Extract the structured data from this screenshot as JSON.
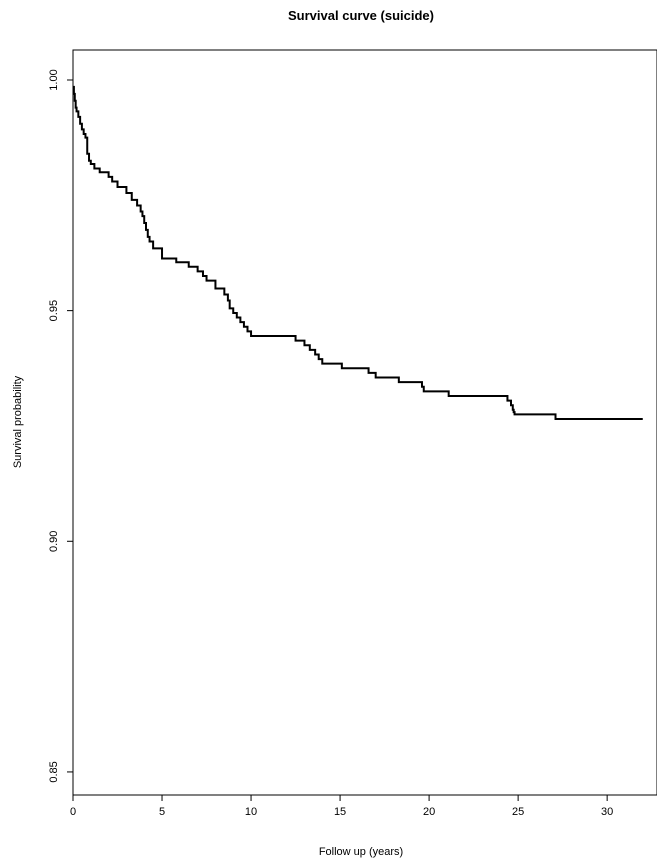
{
  "chart_data": {
    "type": "line",
    "title": "Survival curve (suicide)",
    "xlabel": "Follow up (years)",
    "ylabel": "Survival probability",
    "xlim": [
      0,
      32
    ],
    "ylim": [
      0.845,
      1.0065
    ],
    "x_ticks": [
      "0",
      "5",
      "10",
      "15",
      "20",
      "25",
      "30"
    ],
    "y_ticks": [
      "0.85",
      "0.90",
      "0.95",
      "1.00"
    ],
    "x_tick_values": [
      0,
      5,
      10,
      15,
      20,
      25,
      30
    ],
    "y_tick_values": [
      0.85,
      0.9,
      0.95,
      1.0
    ],
    "grid": false,
    "series": [
      {
        "step": "post",
        "color": "#000000",
        "x": [
          0,
          0.05,
          0.1,
          0.15,
          0.2,
          0.3,
          0.4,
          0.5,
          0.6,
          0.7,
          0.8,
          0.9,
          1.0,
          1.2,
          1.5,
          2.0,
          2.2,
          2.5,
          3.0,
          3.3,
          3.6,
          3.8,
          3.9,
          4.0,
          4.1,
          4.2,
          4.3,
          4.5,
          5.0,
          5.8,
          6.5,
          7.0,
          7.3,
          7.5,
          8.0,
          8.5,
          8.7,
          8.8,
          9.0,
          9.2,
          9.4,
          9.6,
          9.8,
          10.0,
          12.5,
          13.0,
          13.3,
          13.6,
          13.8,
          14.0,
          15.1,
          16.6,
          17.0,
          18.3,
          19.6,
          19.7,
          21.1,
          24.4,
          24.6,
          24.7,
          24.75,
          24.8,
          27.1,
          32.0
        ],
        "y": [
          0.9985,
          0.997,
          0.9955,
          0.994,
          0.9932,
          0.992,
          0.9905,
          0.9893,
          0.9883,
          0.9875,
          0.984,
          0.9825,
          0.9818,
          0.9808,
          0.98,
          0.979,
          0.978,
          0.9768,
          0.9755,
          0.974,
          0.9728,
          0.9715,
          0.9705,
          0.969,
          0.9675,
          0.966,
          0.965,
          0.9635,
          0.9613,
          0.9605,
          0.9595,
          0.9585,
          0.9575,
          0.9565,
          0.9548,
          0.9535,
          0.9522,
          0.9505,
          0.9495,
          0.9485,
          0.9475,
          0.9465,
          0.9455,
          0.9445,
          0.9435,
          0.9425,
          0.9415,
          0.9405,
          0.9395,
          0.9385,
          0.9375,
          0.9365,
          0.9355,
          0.9345,
          0.9335,
          0.9325,
          0.9315,
          0.9305,
          0.9295,
          0.9285,
          0.928,
          0.9275,
          0.9265,
          0.9265
        ]
      }
    ]
  }
}
